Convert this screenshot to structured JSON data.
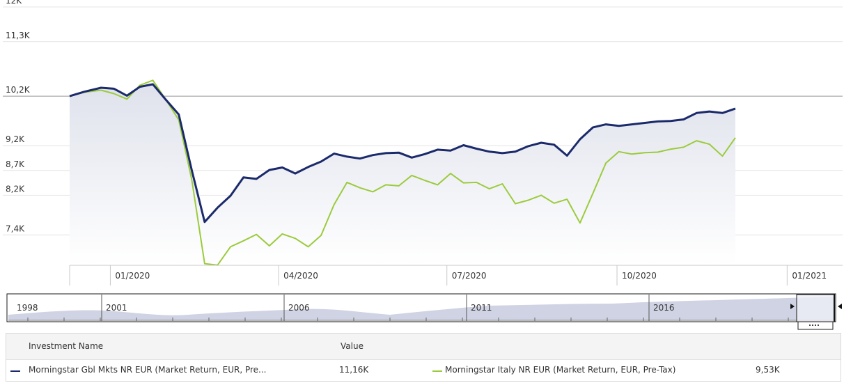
{
  "chart_data": {
    "type": "line",
    "ylim": [
      6800,
      12000
    ],
    "y_ticks": [
      {
        "value": 12000,
        "label": "12K"
      },
      {
        "value": 11300,
        "label": "11,3K"
      },
      {
        "value": 10200,
        "label": "10,2K"
      },
      {
        "value": 9200,
        "label": "9,2K"
      },
      {
        "value": 8700,
        "label": "8,7K"
      },
      {
        "value": 8200,
        "label": "8,2K"
      },
      {
        "value": 7400,
        "label": "7,4K"
      }
    ],
    "x_ticks": [
      {
        "value": "2020-01-01",
        "label": "01/2020"
      },
      {
        "value": "2020-04-01",
        "label": "04/2020"
      },
      {
        "value": "2020-07-01",
        "label": "07/2020"
      },
      {
        "value": "2020-10-01",
        "label": "10/2020"
      },
      {
        "value": "2021-01-01",
        "label": "01/2021"
      }
    ],
    "xlim": [
      "2019-12-10",
      "2021-01-31"
    ],
    "baseline": 10200,
    "series": [
      {
        "name": "Morningstar Gbl Mkts NR EUR (Market Return, EUR, Pre...",
        "color": "#1b2a6b",
        "width": 3,
        "points": [
          [
            "2019-12-10",
            10200
          ],
          [
            "2019-12-18",
            10290
          ],
          [
            "2019-12-27",
            10370
          ],
          [
            "2020-01-03",
            10350
          ],
          [
            "2020-01-10",
            10210
          ],
          [
            "2020-01-17",
            10390
          ],
          [
            "2020-01-24",
            10440
          ],
          [
            "2020-01-31",
            10130
          ],
          [
            "2020-02-07",
            9830
          ],
          [
            "2020-02-14",
            8710
          ],
          [
            "2020-02-21",
            7660
          ],
          [
            "2020-02-28",
            7950
          ],
          [
            "2020-03-06",
            8190
          ],
          [
            "2020-03-13",
            8560
          ],
          [
            "2020-03-20",
            8530
          ],
          [
            "2020-03-27",
            8710
          ],
          [
            "2020-04-03",
            8760
          ],
          [
            "2020-04-10",
            8640
          ],
          [
            "2020-04-17",
            8770
          ],
          [
            "2020-04-24",
            8880
          ],
          [
            "2020-05-01",
            9040
          ],
          [
            "2020-05-08",
            8980
          ],
          [
            "2020-05-15",
            8940
          ],
          [
            "2020-05-22",
            9010
          ],
          [
            "2020-05-29",
            9050
          ],
          [
            "2020-06-05",
            9060
          ],
          [
            "2020-06-12",
            8960
          ],
          [
            "2020-06-19",
            9030
          ],
          [
            "2020-06-26",
            9120
          ],
          [
            "2020-07-03",
            9100
          ],
          [
            "2020-07-10",
            9210
          ],
          [
            "2020-07-17",
            9140
          ],
          [
            "2020-07-24",
            9080
          ],
          [
            "2020-07-31",
            9050
          ],
          [
            "2020-08-07",
            9080
          ],
          [
            "2020-08-14",
            9190
          ],
          [
            "2020-08-21",
            9260
          ],
          [
            "2020-08-28",
            9220
          ],
          [
            "2020-09-04",
            9000
          ],
          [
            "2020-09-11",
            9330
          ],
          [
            "2020-09-18",
            9570
          ],
          [
            "2020-09-25",
            9630
          ],
          [
            "2020-10-02",
            9600
          ],
          [
            "2020-10-09",
            9630
          ],
          [
            "2020-10-16",
            9660
          ],
          [
            "2020-10-23",
            9690
          ],
          [
            "2020-10-30",
            9700
          ],
          [
            "2020-11-06",
            9730
          ],
          [
            "2020-11-13",
            9860
          ],
          [
            "2020-11-20",
            9890
          ],
          [
            "2020-11-27",
            9860
          ],
          [
            "2020-12-04",
            9950
          ]
        ]
      },
      {
        "name": "Morningstar Italy NR EUR (Market Return, EUR, Pre-Tax)",
        "color": "#9bcb3b",
        "width": 2,
        "points": [
          [
            "2019-12-10",
            10200
          ],
          [
            "2019-12-18",
            10280
          ],
          [
            "2019-12-27",
            10320
          ],
          [
            "2020-01-03",
            10250
          ],
          [
            "2020-01-10",
            10140
          ],
          [
            "2020-01-17",
            10420
          ],
          [
            "2020-01-24",
            10520
          ],
          [
            "2020-01-31",
            10130
          ],
          [
            "2020-02-07",
            9720
          ],
          [
            "2020-02-14",
            8520
          ],
          [
            "2020-02-21",
            6820
          ],
          [
            "2020-02-28",
            6790
          ],
          [
            "2020-03-06",
            7160
          ],
          [
            "2020-03-13",
            7280
          ],
          [
            "2020-03-20",
            7410
          ],
          [
            "2020-03-27",
            7180
          ],
          [
            "2020-04-03",
            7420
          ],
          [
            "2020-04-10",
            7330
          ],
          [
            "2020-04-17",
            7160
          ],
          [
            "2020-04-24",
            7390
          ],
          [
            "2020-05-01",
            8010
          ],
          [
            "2020-05-08",
            8460
          ],
          [
            "2020-05-15",
            8350
          ],
          [
            "2020-05-22",
            8270
          ],
          [
            "2020-05-29",
            8410
          ],
          [
            "2020-06-05",
            8390
          ],
          [
            "2020-06-12",
            8600
          ],
          [
            "2020-06-19",
            8500
          ],
          [
            "2020-06-26",
            8410
          ],
          [
            "2020-07-03",
            8640
          ],
          [
            "2020-07-10",
            8450
          ],
          [
            "2020-07-17",
            8460
          ],
          [
            "2020-07-24",
            8330
          ],
          [
            "2020-07-31",
            8430
          ],
          [
            "2020-08-07",
            8030
          ],
          [
            "2020-08-14",
            8100
          ],
          [
            "2020-08-21",
            8200
          ],
          [
            "2020-08-28",
            8040
          ],
          [
            "2020-09-04",
            8120
          ],
          [
            "2020-09-11",
            7640
          ],
          [
            "2020-09-18",
            8240
          ],
          [
            "2020-09-25",
            8850
          ],
          [
            "2020-10-02",
            9080
          ],
          [
            "2020-10-09",
            9030
          ],
          [
            "2020-10-16",
            9060
          ],
          [
            "2020-10-23",
            9070
          ],
          [
            "2020-10-30",
            9130
          ],
          [
            "2020-11-06",
            9170
          ],
          [
            "2020-11-13",
            9300
          ],
          [
            "2020-11-20",
            9230
          ],
          [
            "2020-11-27",
            8990
          ],
          [
            "2020-12-04",
            9360
          ]
        ]
      }
    ],
    "navigator": {
      "labels": [
        "1998",
        "2001",
        "2006",
        "2011",
        "2016"
      ]
    }
  },
  "legend": {
    "header_name": "Investment Name",
    "header_value": "Value",
    "items": [
      {
        "name": "Morningstar Gbl Mkts NR EUR (Market Return, EUR, Pre...",
        "value": "11,16K",
        "color": "#1b2a6b"
      },
      {
        "name": "Morningstar Italy NR EUR (Market Return, EUR, Pre-Tax)",
        "value": "9,53K",
        "color": "#9bcb3b"
      }
    ]
  }
}
